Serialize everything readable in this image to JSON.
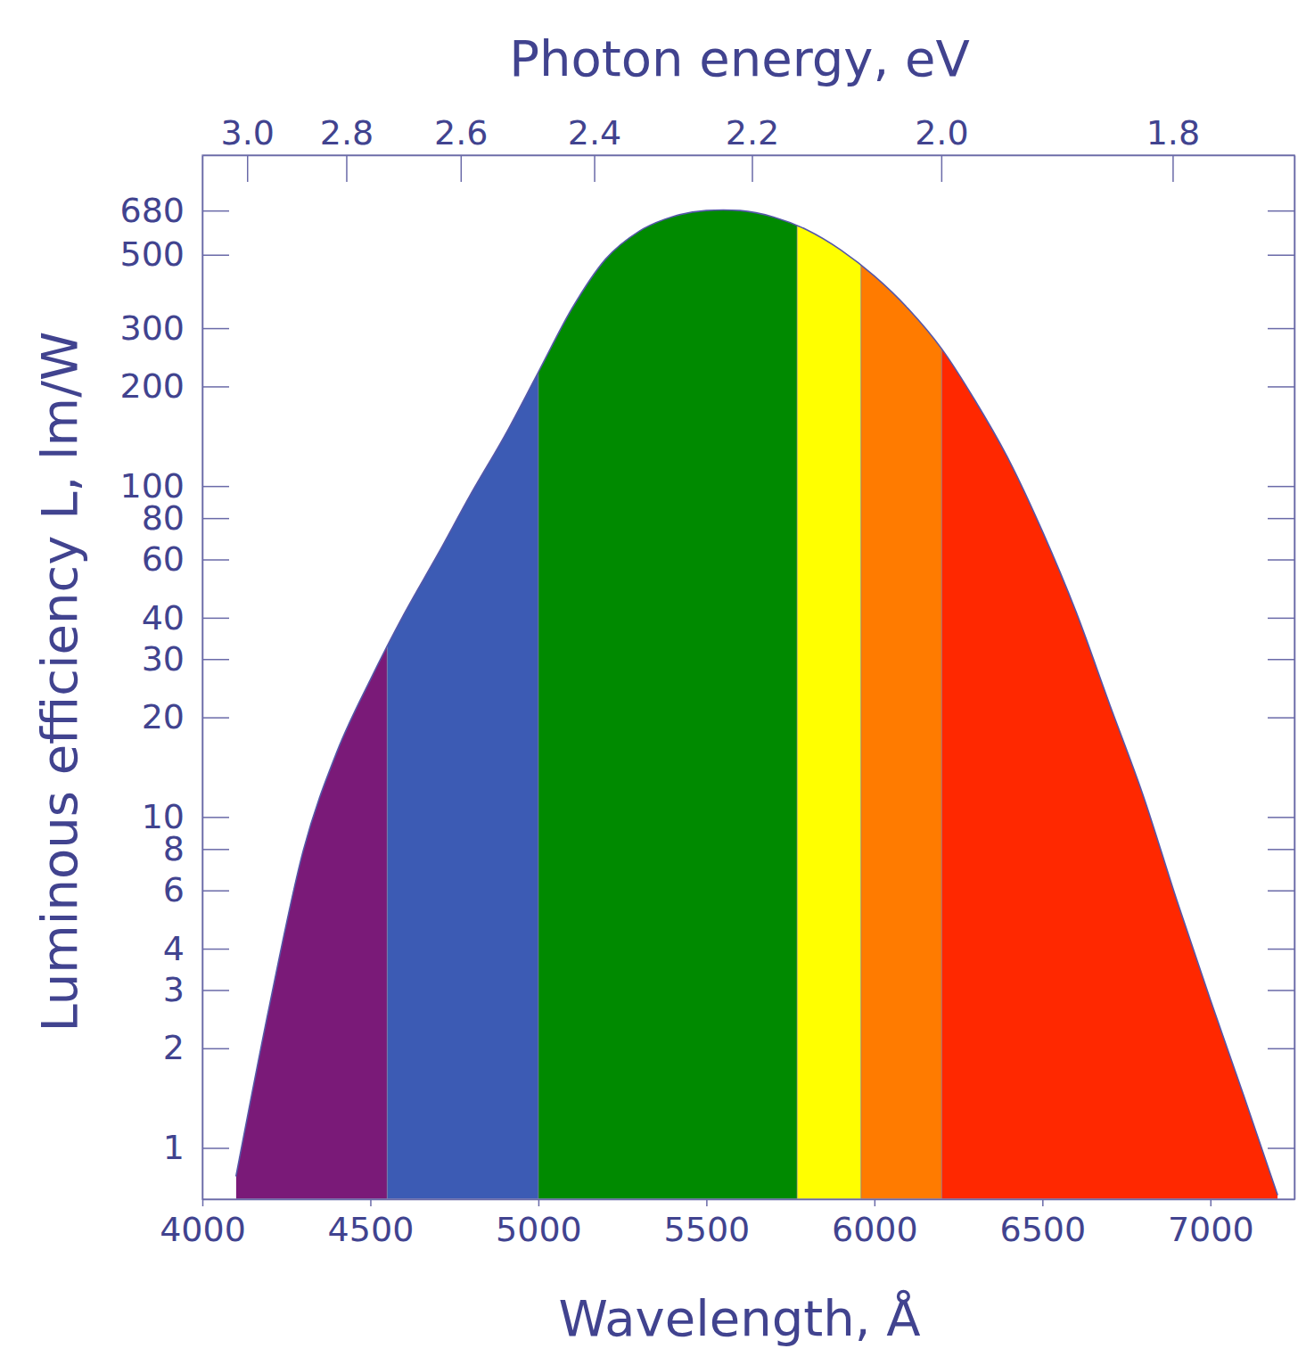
{
  "chart_data": {
    "type": "area",
    "x2label": "Photon energy, eV",
    "xlabel": "Wavelength, Å",
    "ylabel": "Luminous efficiency L, lm/W",
    "log": "y",
    "color": "#5557a8",
    "x": [
      4100,
      4200,
      4300,
      4400,
      4500,
      4600,
      4700,
      4800,
      4900,
      5000,
      5100,
      5200,
      5300,
      5400,
      5500,
      5550,
      5600,
      5700,
      5800,
      5900,
      6000,
      6100,
      6200,
      6300,
      6400,
      6500,
      6600,
      6700,
      6800,
      6900,
      7000,
      7100,
      7200
    ],
    "values": [
      0.82,
      2.7,
      7.9,
      15.7,
      26,
      41,
      62,
      95,
      142,
      221,
      344,
      485,
      589,
      652,
      680,
      683,
      680,
      650,
      594,
      517,
      431,
      344,
      260,
      181,
      120,
      73,
      41.7,
      21.9,
      11.6,
      5.6,
      2.8,
      1.43,
      0.72
    ],
    "band_edges": [
      4100,
      4550,
      5000,
      5770,
      5960,
      6200,
      7200
    ],
    "colors": [
      "#7a1a78",
      "#3c5bb4",
      "#008a00",
      "#ffff00",
      "#ff7b00",
      "#ff2800"
    ],
    "xlim": [
      4000,
      7250
    ],
    "xticks": [
      4000,
      4500,
      5000,
      5500,
      6000,
      6500,
      7000
    ],
    "x2lim": [
      3.1,
      1.71
    ],
    "x2ticks": [
      {
        "value": 3,
        "label": "3.0"
      },
      2.8,
      2.6,
      2.4,
      2.2,
      {
        "value": 2,
        "label": "2.0"
      },
      1.8
    ],
    "ylim": [
      0.7,
      1000
    ],
    "yticks": [
      1,
      2,
      3,
      4,
      6,
      8,
      10,
      20,
      30,
      40,
      60,
      80,
      100,
      200,
      300,
      500,
      680
    ]
  }
}
